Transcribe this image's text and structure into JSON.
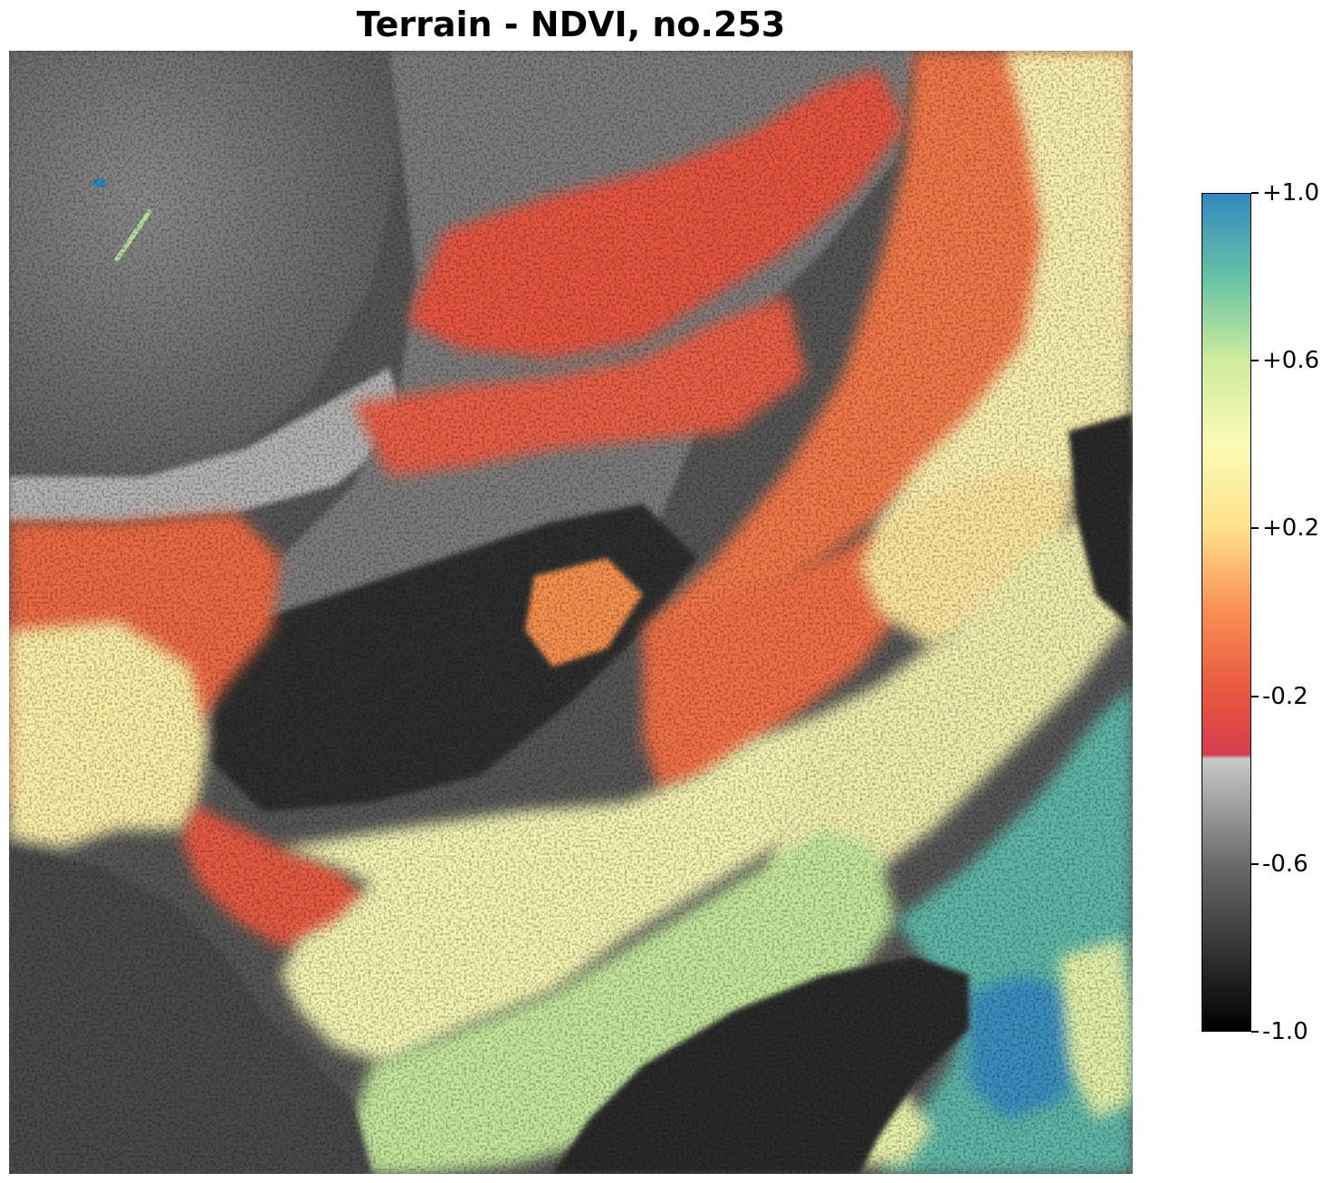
{
  "chart_data": {
    "type": "heatmap",
    "title": "Terrain - NDVI, no.253",
    "variable": "NDVI",
    "colorbar": {
      "vmin": -1.0,
      "vmax": 1.0,
      "ticks": [
        {
          "value": 1.0,
          "label": "+1.0"
        },
        {
          "value": 0.6,
          "label": "+0.6"
        },
        {
          "value": 0.2,
          "label": "+0.2"
        },
        {
          "value": -0.2,
          "label": "-0.2"
        },
        {
          "value": -0.6,
          "label": "-0.6"
        },
        {
          "value": -1.0,
          "label": "-1.0"
        }
      ],
      "colormap": [
        {
          "value": -1.0,
          "color": "#000000"
        },
        {
          "value": -0.6,
          "color": "#6b6b6b"
        },
        {
          "value": -0.35,
          "color": "#c8c8c8"
        },
        {
          "value": -0.34,
          "color": "#d53e4f"
        },
        {
          "value": -0.2,
          "color": "#e8543f"
        },
        {
          "value": 0.0,
          "color": "#f98e52"
        },
        {
          "value": 0.2,
          "color": "#fee08b"
        },
        {
          "value": 0.4,
          "color": "#fbfbb6"
        },
        {
          "value": 0.6,
          "color": "#cfec9d"
        },
        {
          "value": 0.8,
          "color": "#66c2a5"
        },
        {
          "value": 1.0,
          "color": "#3288bd"
        }
      ]
    },
    "axes": "off"
  }
}
